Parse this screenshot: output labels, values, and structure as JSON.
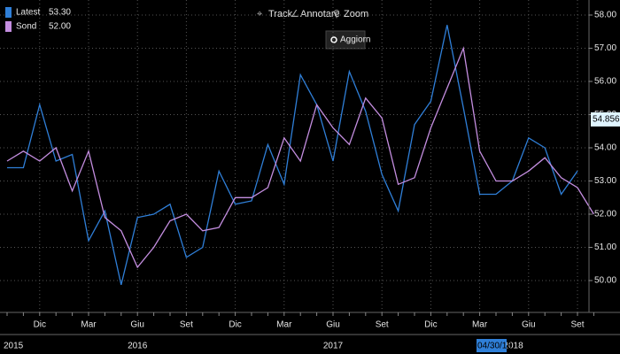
{
  "toolbar": [
    "Track",
    "Annotare",
    "Zoom"
  ],
  "button": "Aggiorn",
  "chart_data": {
    "type": "line",
    "grid": true,
    "legend": "top-left",
    "categories": [
      null,
      null,
      "Dic",
      null,
      null,
      "Mar",
      null,
      null,
      "Giu",
      null,
      null,
      "Set",
      null,
      null,
      "Dic",
      null,
      null,
      "Mar",
      null,
      null,
      "Giu",
      null,
      null,
      "Set",
      null,
      null,
      "Dic",
      null,
      null,
      "Mar",
      null,
      null,
      "Giu",
      null,
      null,
      "Set",
      null
    ],
    "years": [
      "2015",
      null,
      null,
      null,
      null,
      null,
      null,
      null,
      "2016",
      null,
      null,
      null,
      null,
      null,
      null,
      null,
      null,
      null,
      null,
      null,
      "2017",
      null,
      null,
      null,
      null,
      null,
      null,
      null,
      null,
      null,
      null,
      "2018",
      null,
      null,
      null,
      null,
      null
    ],
    "cursor_date": "04/30/18",
    "cursor_value": {
      "value": 54.856,
      "label": "54.856"
    },
    "ylim": [
      49.52,
      58.32
    ],
    "yticks": [
      {
        "value": 50,
        "label": "50.00"
      },
      {
        "value": 51,
        "label": "51.00"
      },
      {
        "value": 52,
        "label": "52.00"
      },
      {
        "value": 53,
        "label": "53.00"
      },
      {
        "value": 54,
        "label": "54.00"
      },
      {
        "value": 55,
        "label": "55.00"
      },
      {
        "value": 56,
        "label": "56.00"
      },
      {
        "value": 57,
        "label": "57.00"
      },
      {
        "value": 58,
        "label": "58.00"
      }
    ],
    "series": [
      {
        "name": "Latest",
        "last_label": "53.30",
        "color": "#2f7fd8",
        "values": [
          53.4,
          53.4,
          55.3,
          53.6,
          53.8,
          51.2,
          52.1,
          49.87,
          51.9,
          52.0,
          52.3,
          50.7,
          51.0,
          53.3,
          52.3,
          52.4,
          54.1,
          52.9,
          56.2,
          55.3,
          53.6,
          56.3,
          55.1,
          53.2,
          52.1,
          54.7,
          55.4,
          57.7,
          55.2,
          52.6,
          52.6,
          53.0,
          54.3,
          54.0,
          52.6,
          53.3,
          null
        ]
      },
      {
        "name": "Sond",
        "last_label": "52.00",
        "color": "#c48ee0",
        "values": [
          53.6,
          53.9,
          53.6,
          54.0,
          52.7,
          53.9,
          51.9,
          51.5,
          50.4,
          51.0,
          51.8,
          52.0,
          51.5,
          51.6,
          52.5,
          52.5,
          52.8,
          54.3,
          53.6,
          55.3,
          54.6,
          54.1,
          55.5,
          54.9,
          52.9,
          53.1,
          54.6,
          55.8,
          57.0,
          53.9,
          53.0,
          53.0,
          53.3,
          53.7,
          53.1,
          52.8,
          52.0
        ]
      }
    ]
  }
}
